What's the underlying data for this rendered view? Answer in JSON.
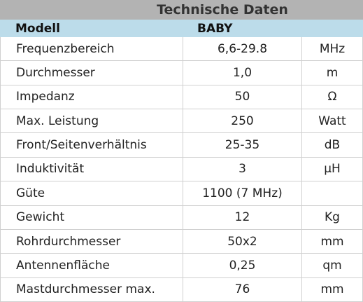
{
  "header": {
    "title": "Technische Daten",
    "columns": [
      "Modell",
      "BABY"
    ]
  },
  "table": {
    "rows": [
      [
        "Frequenzbereich",
        "6,6-29.8",
        "MHz"
      ],
      [
        "Durchmesser",
        "1,0",
        "m"
      ],
      [
        "Impedanz",
        "50",
        "Ω"
      ],
      [
        "Max. Leistung",
        "250",
        "Watt"
      ],
      [
        "Front/Seitenverhältnis",
        "25-35",
        "dB"
      ],
      [
        "Induktivität",
        "3",
        "μH"
      ],
      [
        "Güte",
        "1100 (7 MHz)"
      ],
      [
        "Gewicht",
        "12",
        "Kg"
      ],
      [
        "Rohrdurchmesser",
        "50x2",
        "mm"
      ],
      [
        "Antennenfläche",
        "0,25",
        "qm"
      ],
      [
        "Mastdurchmesser max.",
        "76",
        "mm"
      ]
    ]
  }
}
